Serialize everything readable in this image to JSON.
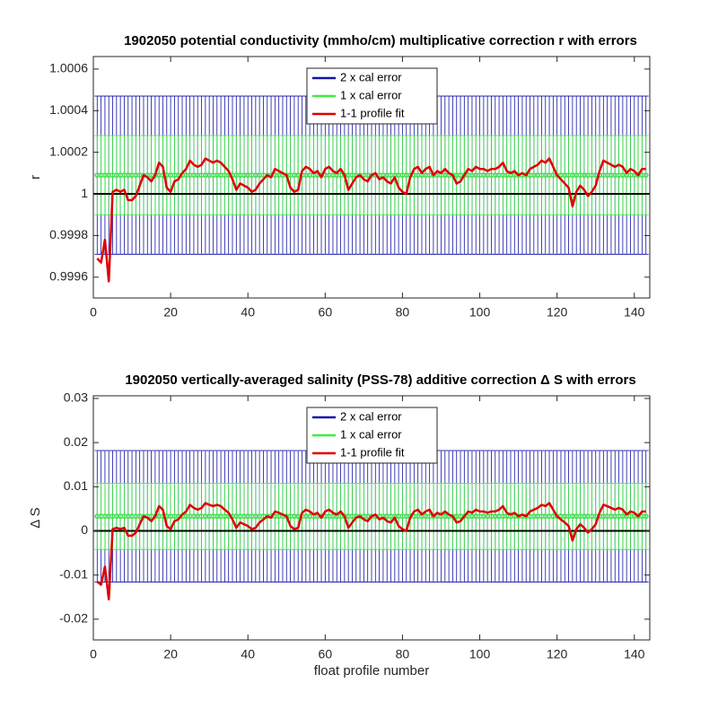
{
  "chart_data": [
    {
      "type": "errorbar",
      "title": "1902050 potential conductivity (mmho/cm) multiplicative correction r with errors",
      "ylabel": "r",
      "x": [
        1,
        2,
        3,
        4,
        5,
        6,
        7,
        8,
        9,
        10,
        11,
        12,
        13,
        14,
        15,
        16,
        17,
        18,
        19,
        20,
        21,
        22,
        23,
        24,
        25,
        26,
        27,
        28,
        29,
        30,
        31,
        32,
        33,
        34,
        35,
        36,
        37,
        38,
        39,
        40,
        41,
        42,
        43,
        44,
        45,
        46,
        47,
        48,
        49,
        50,
        51,
        52,
        53,
        54,
        55,
        56,
        57,
        58,
        59,
        60,
        61,
        62,
        63,
        64,
        65,
        66,
        67,
        68,
        69,
        70,
        71,
        72,
        73,
        74,
        75,
        76,
        77,
        78,
        79,
        80,
        81,
        82,
        83,
        84,
        85,
        86,
        87,
        88,
        89,
        90,
        91,
        92,
        93,
        94,
        95,
        96,
        97,
        98,
        99,
        100,
        101,
        102,
        103,
        104,
        105,
        106,
        107,
        108,
        109,
        110,
        111,
        112,
        113,
        114,
        115,
        116,
        117,
        118,
        119,
        120,
        121,
        122,
        123,
        124,
        125,
        126,
        127,
        128,
        129,
        130,
        131,
        132,
        133,
        134,
        135,
        136,
        137,
        138,
        139,
        140,
        141,
        142,
        143
      ],
      "xlim": [
        0,
        144
      ],
      "xticks": [
        0,
        20,
        40,
        60,
        80,
        100,
        120,
        140
      ],
      "ylim": [
        0.9995,
        1.00066
      ],
      "yticks": [
        0.9996,
        0.9998,
        1,
        1.0002,
        1.0004,
        1.0006
      ],
      "hline": 1,
      "series": [
        {
          "name": "2 x cal error",
          "color": "#1414a8",
          "value": 1.00009,
          "error": 0.00038
        },
        {
          "name": "1 x cal error",
          "color": "#3cf03c",
          "value": 1.00009,
          "error": 0.00019
        },
        {
          "name": "1-1 profile fit",
          "color": "#e00000",
          "values": [
            0.99969,
            0.99967,
            0.99978,
            0.99958,
            1.00001,
            1.00002,
            1.00001,
            1.00002,
            0.99997,
            0.99997,
            0.99999,
            1.00004,
            1.00009,
            1.00008,
            1.00006,
            1.00009,
            1.00015,
            1.00013,
            1.00003,
            1.00001,
            1.00006,
            1.00007,
            1.0001,
            1.00012,
            1.00016,
            1.00014,
            1.00013,
            1.00014,
            1.00017,
            1.00016,
            1.00015,
            1.00016,
            1.00015,
            1.00013,
            1.00011,
            1.00007,
            1.00002,
            1.00005,
            1.00004,
            1.00003,
            1.00001,
            1.00002,
            1.00005,
            1.00007,
            1.00009,
            1.00008,
            1.00012,
            1.00011,
            1.0001,
            1.00009,
            1.00003,
            1.00001,
            1.00002,
            1.00011,
            1.00013,
            1.00012,
            1.0001,
            1.00011,
            1.00008,
            1.00012,
            1.00013,
            1.00011,
            1.0001,
            1.00012,
            1.00009,
            1.00002,
            1.00005,
            1.00008,
            1.00009,
            1.00007,
            1.00006,
            1.00009,
            1.0001,
            1.00007,
            1.00008,
            1.00006,
            1.00005,
            1.00008,
            1.00003,
            1.00001,
            1,
            1.00008,
            1.00012,
            1.00013,
            1.0001,
            1.00012,
            1.00013,
            1.00009,
            1.00011,
            1.0001,
            1.00012,
            1.0001,
            1.00009,
            1.00005,
            1.00006,
            1.00009,
            1.00012,
            1.00011,
            1.00013,
            1.00012,
            1.00012,
            1.00011,
            1.00012,
            1.00012,
            1.00013,
            1.00015,
            1.00011,
            1.0001,
            1.00011,
            1.00009,
            1.0001,
            1.00009,
            1.00012,
            1.00013,
            1.00014,
            1.00016,
            1.00015,
            1.00017,
            1.00013,
            1.00009,
            1.00007,
            1.00005,
            1.00003,
            0.99994,
            1.00001,
            1.00004,
            1.00002,
            0.99999,
            1.00001,
            1.00004,
            1.00011,
            1.00016,
            1.00015,
            1.00014,
            1.00013,
            1.00014,
            1.00013,
            1.0001,
            1.00012,
            1.00011,
            1.00009,
            1.00012,
            1.00012
          ]
        }
      ]
    },
    {
      "type": "errorbar",
      "title": "1902050 vertically-averaged salinity (PSS-78) additive correction Δ S with errors",
      "ylabel": "Δ S",
      "xlabel": "float profile number",
      "x": [
        1,
        2,
        3,
        4,
        5,
        6,
        7,
        8,
        9,
        10,
        11,
        12,
        13,
        14,
        15,
        16,
        17,
        18,
        19,
        20,
        21,
        22,
        23,
        24,
        25,
        26,
        27,
        28,
        29,
        30,
        31,
        32,
        33,
        34,
        35,
        36,
        37,
        38,
        39,
        40,
        41,
        42,
        43,
        44,
        45,
        46,
        47,
        48,
        49,
        50,
        51,
        52,
        53,
        54,
        55,
        56,
        57,
        58,
        59,
        60,
        61,
        62,
        63,
        64,
        65,
        66,
        67,
        68,
        69,
        70,
        71,
        72,
        73,
        74,
        75,
        76,
        77,
        78,
        79,
        80,
        81,
        82,
        83,
        84,
        85,
        86,
        87,
        88,
        89,
        90,
        91,
        92,
        93,
        94,
        95,
        96,
        97,
        98,
        99,
        100,
        101,
        102,
        103,
        104,
        105,
        106,
        107,
        108,
        109,
        110,
        111,
        112,
        113,
        114,
        115,
        116,
        117,
        118,
        119,
        120,
        121,
        122,
        123,
        124,
        125,
        126,
        127,
        128,
        129,
        130,
        131,
        132,
        133,
        134,
        135,
        136,
        137,
        138,
        139,
        140,
        141,
        142,
        143
      ],
      "xlim": [
        0,
        144
      ],
      "xticks": [
        0,
        20,
        40,
        60,
        80,
        100,
        120,
        140
      ],
      "ylim": [
        -0.0247,
        0.0306
      ],
      "yticks": [
        -0.02,
        -0.01,
        0,
        0.01,
        0.02,
        0.03
      ],
      "hline": 0,
      "series": [
        {
          "name": "2 x cal error",
          "color": "#1414a8",
          "value": 0.0033,
          "error": 0.0149
        },
        {
          "name": "1 x cal error",
          "color": "#3cf03c",
          "value": 0.0033,
          "error": 0.0075
        },
        {
          "name": "1-1 profile fit",
          "color": "#e00000",
          "values": [
            -0.0115,
            -0.0122,
            -0.0081,
            -0.0155,
            0.0004,
            0.0007,
            0.0004,
            0.0007,
            -0.0011,
            -0.0011,
            -0.0004,
            0.0015,
            0.0033,
            0.003,
            0.0022,
            0.0033,
            0.0056,
            0.0048,
            0.0011,
            0.0004,
            0.0022,
            0.0026,
            0.0037,
            0.0044,
            0.0059,
            0.0052,
            0.0048,
            0.0052,
            0.0063,
            0.0059,
            0.0056,
            0.0059,
            0.0056,
            0.0048,
            0.0041,
            0.0026,
            0.0007,
            0.0019,
            0.0015,
            0.0011,
            0.0004,
            0.0007,
            0.0019,
            0.0026,
            0.0033,
            0.003,
            0.0044,
            0.0041,
            0.0037,
            0.0033,
            0.0011,
            0.0004,
            0.0007,
            0.0041,
            0.0048,
            0.0044,
            0.0037,
            0.0041,
            0.003,
            0.0044,
            0.0048,
            0.0041,
            0.0037,
            0.0044,
            0.0033,
            0.0007,
            0.0019,
            0.003,
            0.0033,
            0.0026,
            0.0022,
            0.0033,
            0.0037,
            0.0026,
            0.003,
            0.0022,
            0.0019,
            0.003,
            0.0011,
            0.0004,
            0,
            0.003,
            0.0044,
            0.0048,
            0.0037,
            0.0044,
            0.0048,
            0.0033,
            0.0041,
            0.0037,
            0.0044,
            0.0037,
            0.0033,
            0.0019,
            0.0022,
            0.0033,
            0.0044,
            0.0041,
            0.0048,
            0.0044,
            0.0044,
            0.0041,
            0.0044,
            0.0044,
            0.0048,
            0.0056,
            0.0041,
            0.0037,
            0.0041,
            0.0033,
            0.0037,
            0.0033,
            0.0044,
            0.0048,
            0.0052,
            0.0059,
            0.0056,
            0.0063,
            0.0048,
            0.0033,
            0.0026,
            0.0019,
            0.0011,
            -0.0022,
            0.0004,
            0.0015,
            0.0007,
            -0.0004,
            0.0004,
            0.0015,
            0.0041,
            0.0059,
            0.0056,
            0.0052,
            0.0048,
            0.0052,
            0.0048,
            0.0037,
            0.0044,
            0.0041,
            0.0033,
            0.0044,
            0.0044
          ]
        }
      ]
    }
  ]
}
